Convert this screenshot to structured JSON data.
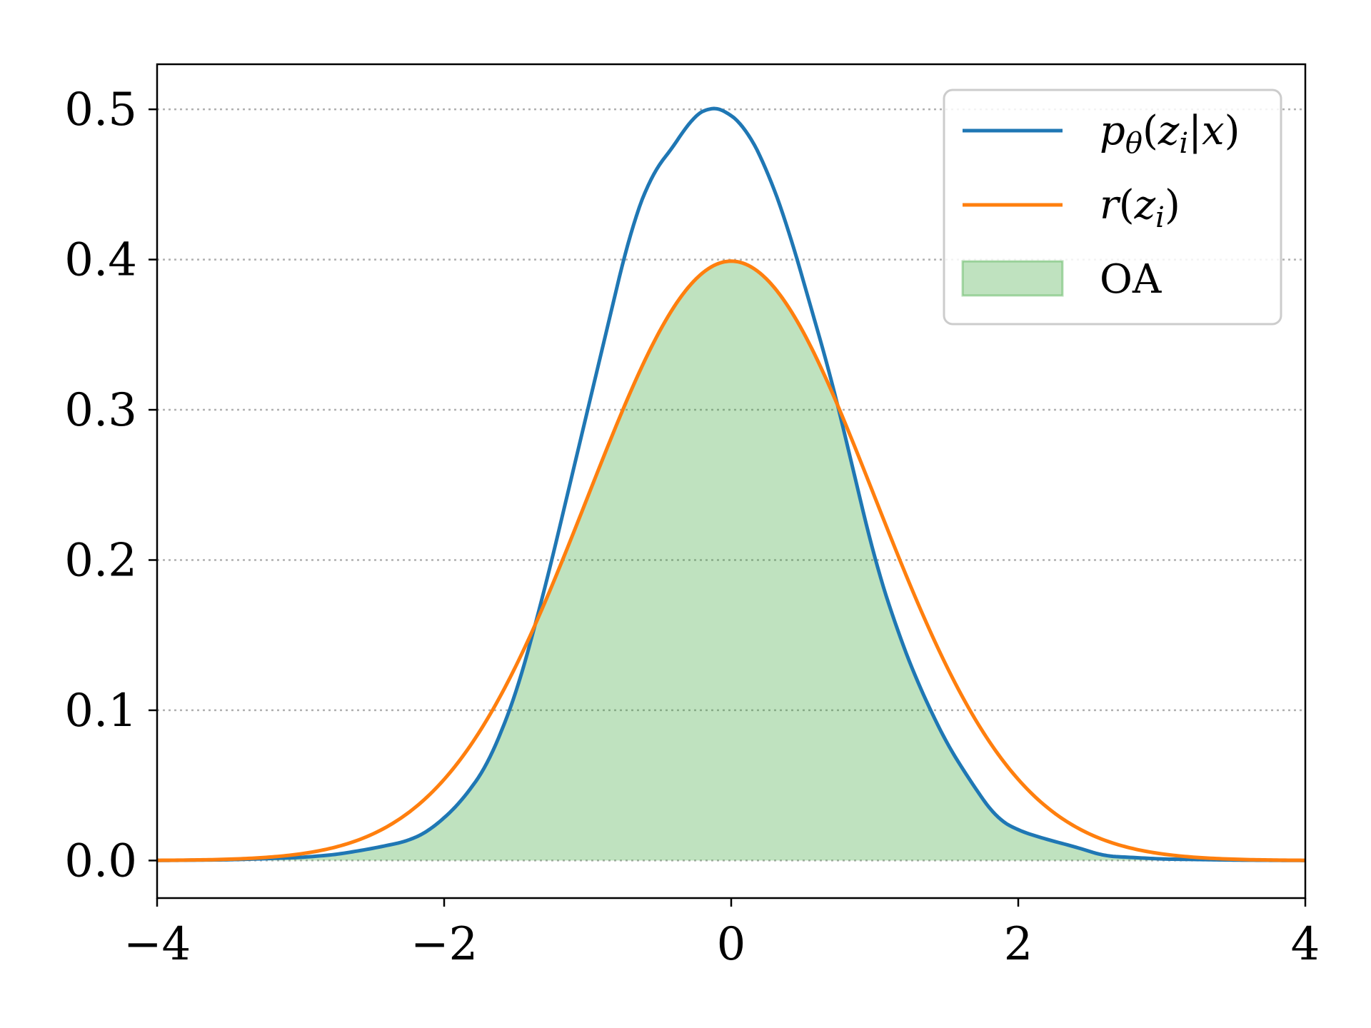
{
  "chart_data": {
    "type": "area",
    "title": "",
    "xlabel": "",
    "ylabel": "",
    "xlim": [
      -4,
      4
    ],
    "ylim": [
      -0.025,
      0.53
    ],
    "x_ticks": [
      -4,
      -2,
      0,
      2,
      4
    ],
    "x_tick_labels": [
      "−4",
      "−2",
      "0",
      "2",
      "4"
    ],
    "y_ticks": [
      0.0,
      0.1,
      0.2,
      0.3,
      0.4,
      0.5
    ],
    "y_tick_labels": [
      "0.0",
      "0.1",
      "0.2",
      "0.3",
      "0.4",
      "0.5"
    ],
    "grid": "y-dotted",
    "legend_position": "top-right",
    "series": [
      {
        "name": "pθ(zi|x)",
        "color": "#1f77b4",
        "points": [
          [
            -4.0,
            0.0
          ],
          [
            -3.5,
            0.0005
          ],
          [
            -3.0,
            0.002
          ],
          [
            -2.75,
            0.004
          ],
          [
            -2.5,
            0.008
          ],
          [
            -2.25,
            0.013
          ],
          [
            -2.1,
            0.02
          ],
          [
            -1.9,
            0.037
          ],
          [
            -1.7,
            0.063
          ],
          [
            -1.5,
            0.11
          ],
          [
            -1.3,
            0.18
          ],
          [
            -1.1,
            0.26
          ],
          [
            -0.9,
            0.34
          ],
          [
            -0.7,
            0.42
          ],
          [
            -0.55,
            0.458
          ],
          [
            -0.4,
            0.475
          ],
          [
            -0.28,
            0.494
          ],
          [
            -0.15,
            0.502
          ],
          [
            -0.05,
            0.5
          ],
          [
            0.1,
            0.488
          ],
          [
            0.25,
            0.46
          ],
          [
            0.4,
            0.42
          ],
          [
            0.55,
            0.37
          ],
          [
            0.7,
            0.32
          ],
          [
            0.85,
            0.26
          ],
          [
            1.0,
            0.2
          ],
          [
            1.15,
            0.155
          ],
          [
            1.3,
            0.118
          ],
          [
            1.5,
            0.078
          ],
          [
            1.7,
            0.048
          ],
          [
            1.85,
            0.028
          ],
          [
            2.0,
            0.02
          ],
          [
            2.2,
            0.014
          ],
          [
            2.4,
            0.009
          ],
          [
            2.6,
            0.003
          ],
          [
            3.0,
            0.001
          ],
          [
            3.5,
            0.0003
          ],
          [
            4.0,
            0.0
          ]
        ]
      },
      {
        "name": "r(zi)",
        "color": "#ff7f0e",
        "distribution": "standard normal",
        "mean": 0,
        "std": 1,
        "peak": 0.399
      }
    ],
    "fill": {
      "name": "OA",
      "color": "#2ca02c",
      "opacity": 0.3,
      "description_of_region": "min of both curves"
    },
    "legend_labels": {
      "blue": "pθ(zi|x)",
      "orange": "r(zi)",
      "fill": "OA"
    }
  }
}
